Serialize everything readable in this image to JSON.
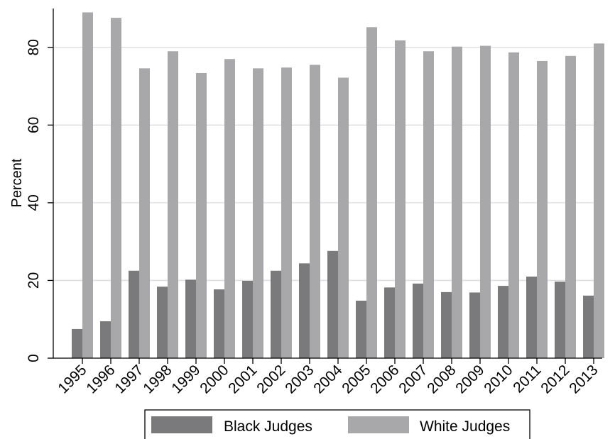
{
  "chart_data": {
    "type": "bar",
    "title": "",
    "xlabel": "",
    "ylabel": "Percent",
    "ylim": [
      0,
      90
    ],
    "yticks": [
      0,
      20,
      40,
      60,
      80
    ],
    "grid": true,
    "legend_position": "bottom",
    "categories": [
      "1995",
      "1996",
      "1997",
      "1998",
      "1999",
      "2000",
      "2001",
      "2002",
      "2003",
      "2004",
      "2005",
      "2006",
      "2007",
      "2008",
      "2009",
      "2010",
      "2011",
      "2012",
      "2013"
    ],
    "series": [
      {
        "name": "Black Judges",
        "color": "#7a7a7c",
        "values": [
          7.5,
          9.5,
          22.5,
          18.4,
          20.2,
          17.7,
          19.9,
          22.5,
          24.4,
          27.6,
          14.8,
          18.2,
          19.2,
          17.0,
          16.9,
          18.6,
          21.0,
          19.7,
          16.1
        ]
      },
      {
        "name": "White Judges",
        "color": "#a8a8aa",
        "values": [
          89.0,
          87.6,
          74.6,
          79.0,
          73.4,
          77.0,
          74.6,
          74.8,
          75.5,
          72.2,
          85.2,
          81.8,
          79.0,
          80.2,
          80.4,
          78.7,
          76.5,
          77.8,
          81.0
        ]
      }
    ]
  }
}
